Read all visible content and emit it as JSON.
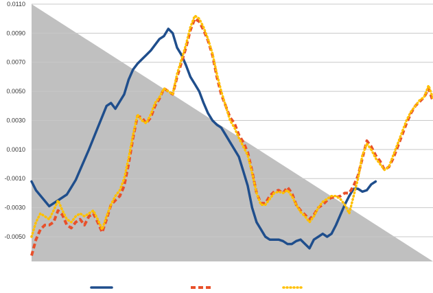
{
  "chart_data": {
    "type": "line",
    "yticks": [
      "0.0110",
      "0.0090",
      "0.0070",
      "0.0050",
      "0.0030",
      "0.0010",
      "-0.0010",
      "-0.0030",
      "-0.0050"
    ],
    "ylim": [
      -0.0067,
      0.011
    ],
    "grid": true,
    "legend_position": "bottom",
    "series": [
      {
        "style": "solid",
        "color": "#1f4e8c",
        "points": [
          [
            0,
            -0.0012
          ],
          [
            1,
            -0.0018
          ],
          [
            4,
            -0.0029
          ],
          [
            6,
            -0.0025
          ],
          [
            8,
            -0.0021
          ],
          [
            9,
            -0.0016
          ],
          [
            10,
            -0.0011
          ],
          [
            13,
            0.001
          ],
          [
            15,
            0.0025
          ],
          [
            17,
            0.004
          ],
          [
            18,
            0.0042
          ],
          [
            19,
            0.0038
          ],
          [
            21,
            0.0048
          ],
          [
            22,
            0.0058
          ],
          [
            23,
            0.0065
          ],
          [
            24,
            0.0069
          ],
          [
            25,
            0.0072
          ],
          [
            26,
            0.0075
          ],
          [
            27,
            0.0078
          ],
          [
            28,
            0.0082
          ],
          [
            29,
            0.0086
          ],
          [
            30,
            0.0088
          ],
          [
            31,
            0.0093
          ],
          [
            32,
            0.009
          ],
          [
            33,
            0.008
          ],
          [
            34,
            0.0075
          ],
          [
            35,
            0.0068
          ],
          [
            36,
            0.006
          ],
          [
            37,
            0.0055
          ],
          [
            38,
            0.005
          ],
          [
            39,
            0.0042
          ],
          [
            40,
            0.0035
          ],
          [
            41,
            0.003
          ],
          [
            42,
            0.0027
          ],
          [
            43,
            0.0025
          ],
          [
            44,
            0.002
          ],
          [
            45,
            0.0015
          ],
          [
            46,
            0.001
          ],
          [
            47,
            0.0005
          ],
          [
            48,
            -0.0005
          ],
          [
            49,
            -0.0015
          ],
          [
            50,
            -0.003
          ],
          [
            51,
            -0.004
          ],
          [
            52,
            -0.0045
          ],
          [
            53,
            -0.005
          ],
          [
            54,
            -0.0052
          ],
          [
            55,
            -0.0052
          ],
          [
            56,
            -0.0052
          ],
          [
            57,
            -0.0053
          ],
          [
            58,
            -0.0055
          ],
          [
            59,
            -0.0055
          ],
          [
            60,
            -0.0053
          ],
          [
            61,
            -0.0052
          ],
          [
            62,
            -0.0055
          ],
          [
            63,
            -0.0058
          ],
          [
            64,
            -0.0052
          ],
          [
            65,
            -0.005
          ],
          [
            66,
            -0.0048
          ],
          [
            67,
            -0.005
          ],
          [
            68,
            -0.0048
          ],
          [
            69,
            -0.0042
          ],
          [
            70,
            -0.0035
          ],
          [
            71,
            -0.0028
          ],
          [
            72,
            -0.0022
          ],
          [
            73,
            -0.0017
          ],
          [
            74,
            -0.0017
          ],
          [
            75,
            -0.0019
          ],
          [
            76,
            -0.0018
          ],
          [
            77,
            -0.0014
          ],
          [
            78,
            -0.0012
          ]
        ]
      },
      {
        "style": "dashed",
        "color": "#e8502a",
        "points": [
          [
            0,
            -0.0063
          ],
          [
            1,
            -0.0052
          ],
          [
            2,
            -0.0045
          ],
          [
            3,
            -0.0042
          ],
          [
            4,
            -0.0042
          ],
          [
            5,
            -0.004
          ],
          [
            6,
            -0.0032
          ],
          [
            7,
            -0.0035
          ],
          [
            8,
            -0.0042
          ],
          [
            9,
            -0.0044
          ],
          [
            10,
            -0.004
          ],
          [
            11,
            -0.0038
          ],
          [
            12,
            -0.0042
          ],
          [
            13,
            -0.0036
          ],
          [
            14,
            -0.0034
          ],
          [
            15,
            -0.004
          ],
          [
            16,
            -0.0047
          ],
          [
            17,
            -0.0038
          ],
          [
            18,
            -0.0028
          ],
          [
            19,
            -0.0025
          ],
          [
            20,
            -0.0022
          ],
          [
            21,
            -0.0015
          ],
          [
            22,
            0.0
          ],
          [
            23,
            0.0018
          ],
          [
            24,
            0.0033
          ],
          [
            25,
            0.0032
          ],
          [
            26,
            0.0028
          ],
          [
            27,
            0.0032
          ],
          [
            28,
            0.004
          ],
          [
            29,
            0.0045
          ],
          [
            30,
            0.0052
          ],
          [
            31,
            0.005
          ],
          [
            32,
            0.0048
          ],
          [
            33,
            0.006
          ],
          [
            34,
            0.007
          ],
          [
            35,
            0.008
          ],
          [
            36,
            0.0092
          ],
          [
            37,
            0.01
          ],
          [
            38,
            0.0098
          ],
          [
            39,
            0.0092
          ],
          [
            40,
            0.0085
          ],
          [
            41,
            0.0075
          ],
          [
            42,
            0.006
          ],
          [
            43,
            0.0048
          ],
          [
            44,
            0.004
          ],
          [
            45,
            0.0032
          ],
          [
            46,
            0.0028
          ],
          [
            47,
            0.002
          ],
          [
            48,
            0.0015
          ],
          [
            49,
            0.0008
          ],
          [
            50,
            -0.0005
          ],
          [
            51,
            -0.002
          ],
          [
            52,
            -0.0027
          ],
          [
            53,
            -0.0027
          ],
          [
            54,
            -0.0022
          ],
          [
            55,
            -0.0019
          ],
          [
            56,
            -0.0018
          ],
          [
            57,
            -0.002
          ],
          [
            58,
            -0.0016
          ],
          [
            59,
            -0.002
          ],
          [
            60,
            -0.0028
          ],
          [
            61,
            -0.0032
          ],
          [
            62,
            -0.0035
          ],
          [
            63,
            -0.0038
          ],
          [
            64,
            -0.0035
          ],
          [
            65,
            -0.003
          ],
          [
            66,
            -0.0028
          ],
          [
            67,
            -0.0025
          ],
          [
            68,
            -0.0023
          ],
          [
            69,
            -0.0023
          ],
          [
            70,
            -0.0022
          ],
          [
            71,
            -0.002
          ],
          [
            72,
            -0.002
          ],
          [
            73,
            -0.0015
          ],
          [
            74,
            -0.0008
          ],
          [
            75,
            0.0004
          ],
          [
            76,
            0.0016
          ],
          [
            77,
            0.0012
          ],
          [
            78,
            0.0006
          ],
          [
            79,
            0.0002
          ],
          [
            80,
            -0.0004
          ],
          [
            81,
            -0.0002
          ],
          [
            82,
            0.0004
          ],
          [
            83,
            0.0012
          ],
          [
            84,
            0.002
          ],
          [
            85,
            0.0028
          ],
          [
            86,
            0.0035
          ],
          [
            87,
            0.004
          ],
          [
            88,
            0.0043
          ],
          [
            89,
            0.0046
          ],
          [
            90,
            0.0052
          ],
          [
            91,
            0.0043
          ]
        ]
      },
      {
        "style": "dotted",
        "color": "#ffc000",
        "points": [
          [
            0,
            -0.005
          ],
          [
            1,
            -0.004
          ],
          [
            2,
            -0.0034
          ],
          [
            3,
            -0.0036
          ],
          [
            4,
            -0.0038
          ],
          [
            5,
            -0.0032
          ],
          [
            6,
            -0.0025
          ],
          [
            7,
            -0.0032
          ],
          [
            8,
            -0.0038
          ],
          [
            9,
            -0.004
          ],
          [
            10,
            -0.0036
          ],
          [
            11,
            -0.0034
          ],
          [
            12,
            -0.0036
          ],
          [
            13,
            -0.0034
          ],
          [
            14,
            -0.0032
          ],
          [
            15,
            -0.0038
          ],
          [
            16,
            -0.0045
          ],
          [
            17,
            -0.0036
          ],
          [
            18,
            -0.0028
          ],
          [
            19,
            -0.0022
          ],
          [
            20,
            -0.0018
          ],
          [
            21,
            -0.001
          ],
          [
            22,
            0.0004
          ],
          [
            23,
            0.002
          ],
          [
            24,
            0.0034
          ],
          [
            25,
            0.003
          ],
          [
            26,
            0.0028
          ],
          [
            27,
            0.0034
          ],
          [
            28,
            0.0042
          ],
          [
            29,
            0.0046
          ],
          [
            30,
            0.0052
          ],
          [
            31,
            0.005
          ],
          [
            32,
            0.0048
          ],
          [
            33,
            0.0062
          ],
          [
            34,
            0.0072
          ],
          [
            35,
            0.0082
          ],
          [
            36,
            0.0094
          ],
          [
            37,
            0.0102
          ],
          [
            38,
            0.01
          ],
          [
            39,
            0.0094
          ],
          [
            40,
            0.0086
          ],
          [
            41,
            0.0076
          ],
          [
            42,
            0.0062
          ],
          [
            43,
            0.005
          ],
          [
            44,
            0.004
          ],
          [
            45,
            0.003
          ],
          [
            46,
            0.0025
          ],
          [
            47,
            0.0018
          ],
          [
            48,
            0.0012
          ],
          [
            49,
            0.0006
          ],
          [
            50,
            -0.0006
          ],
          [
            51,
            -0.002
          ],
          [
            52,
            -0.0028
          ],
          [
            53,
            -0.0028
          ],
          [
            54,
            -0.0024
          ],
          [
            55,
            -0.002
          ],
          [
            56,
            -0.0019
          ],
          [
            57,
            -0.002
          ],
          [
            58,
            -0.0018
          ],
          [
            59,
            -0.0022
          ],
          [
            60,
            -0.0028
          ],
          [
            61,
            -0.0033
          ],
          [
            62,
            -0.0036
          ],
          [
            63,
            -0.004
          ],
          [
            64,
            -0.0036
          ],
          [
            65,
            -0.003
          ],
          [
            66,
            -0.0026
          ],
          [
            67,
            -0.0024
          ],
          [
            68,
            -0.0022
          ],
          [
            69,
            -0.0022
          ],
          [
            70,
            -0.0024
          ],
          [
            71,
            -0.0028
          ],
          [
            72,
            -0.0034
          ],
          [
            73,
            -0.0022
          ],
          [
            74,
            -0.001
          ],
          [
            75,
            0.0006
          ],
          [
            76,
            0.0014
          ],
          [
            77,
            0.001
          ],
          [
            78,
            0.0004
          ],
          [
            79,
            0.0
          ],
          [
            80,
            -0.0004
          ],
          [
            81,
            -0.0002
          ],
          [
            82,
            0.0006
          ],
          [
            83,
            0.0014
          ],
          [
            84,
            0.0022
          ],
          [
            85,
            0.003
          ],
          [
            86,
            0.0036
          ],
          [
            87,
            0.004
          ],
          [
            88,
            0.0044
          ],
          [
            89,
            0.0046
          ],
          [
            90,
            0.0054
          ],
          [
            91,
            0.0045
          ]
        ]
      }
    ],
    "background_shape_color": "#c0c0c0",
    "gridline_color": "#c8c8c8"
  }
}
